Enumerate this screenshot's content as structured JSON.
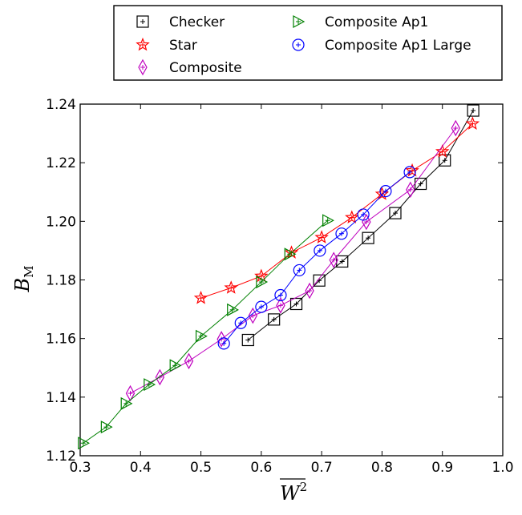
{
  "chart_data": {
    "type": "line",
    "xlabel": "W",
    "xlabel_superscript": "2",
    "ylabel": "B",
    "ylabel_subscript": "M",
    "xlim": [
      0.3,
      1.0
    ],
    "ylim": [
      1.12,
      1.24
    ],
    "xticks": [
      "0.3",
      "0.4",
      "0.5",
      "0.6",
      "0.7",
      "0.8",
      "0.9",
      "1.0"
    ],
    "yticks": [
      "1.12",
      "1.14",
      "1.16",
      "1.18",
      "1.20",
      "1.22",
      "1.24"
    ],
    "xtick_values": [
      0.3,
      0.4,
      0.5,
      0.6,
      0.7,
      0.8,
      0.9,
      1.0
    ],
    "ytick_values": [
      1.12,
      1.14,
      1.16,
      1.18,
      1.2,
      1.22,
      1.24
    ],
    "legend_position": "top-center",
    "series": [
      {
        "name": "Checker",
        "color": "#000000",
        "marker": "square",
        "x": [
          0.578,
          0.621,
          0.658,
          0.696,
          0.734,
          0.777,
          0.822,
          0.864,
          0.904,
          0.951
        ],
        "y": [
          1.1595,
          1.1665,
          1.1718,
          1.1798,
          1.1863,
          1.1943,
          1.2028,
          1.2128,
          1.2208,
          1.2378
        ]
      },
      {
        "name": "Star",
        "color": "#ff0000",
        "marker": "star",
        "x": [
          0.5,
          0.55,
          0.6,
          0.65,
          0.7,
          0.75,
          0.8,
          0.85,
          0.9,
          0.95
        ],
        "y": [
          1.1738,
          1.1773,
          1.1813,
          1.1893,
          1.1945,
          1.2013,
          1.2093,
          1.2173,
          1.2238,
          1.2333
        ]
      },
      {
        "name": "Composite",
        "color": "#bf00bf",
        "marker": "diamond",
        "x": [
          0.383,
          0.432,
          0.48,
          0.534,
          0.586,
          0.632,
          0.68,
          0.72,
          0.774,
          0.847,
          0.922
        ],
        "y": [
          1.1413,
          1.1468,
          1.1523,
          1.1598,
          1.1678,
          1.1713,
          1.1763,
          1.1868,
          1.1998,
          1.2108,
          1.2318
        ]
      },
      {
        "name": "Composite Ap1",
        "color": "#008000",
        "marker": "triangle-right",
        "x": [
          0.305,
          0.343,
          0.376,
          0.414,
          0.457,
          0.5,
          0.552,
          0.6,
          0.647,
          0.71
        ],
        "y": [
          1.1243,
          1.1298,
          1.1378,
          1.1443,
          1.1508,
          1.1608,
          1.1698,
          1.1793,
          1.1888,
          1.2003
        ]
      },
      {
        "name": "Composite Ap1 Large",
        "color": "#0000ff",
        "marker": "circle",
        "x": [
          0.538,
          0.566,
          0.6,
          0.632,
          0.663,
          0.697,
          0.733,
          0.769,
          0.806,
          0.846
        ],
        "y": [
          1.1583,
          1.1653,
          1.1708,
          1.1748,
          1.1833,
          1.19,
          1.1958,
          1.2023,
          1.2103,
          1.2168
        ]
      }
    ]
  }
}
